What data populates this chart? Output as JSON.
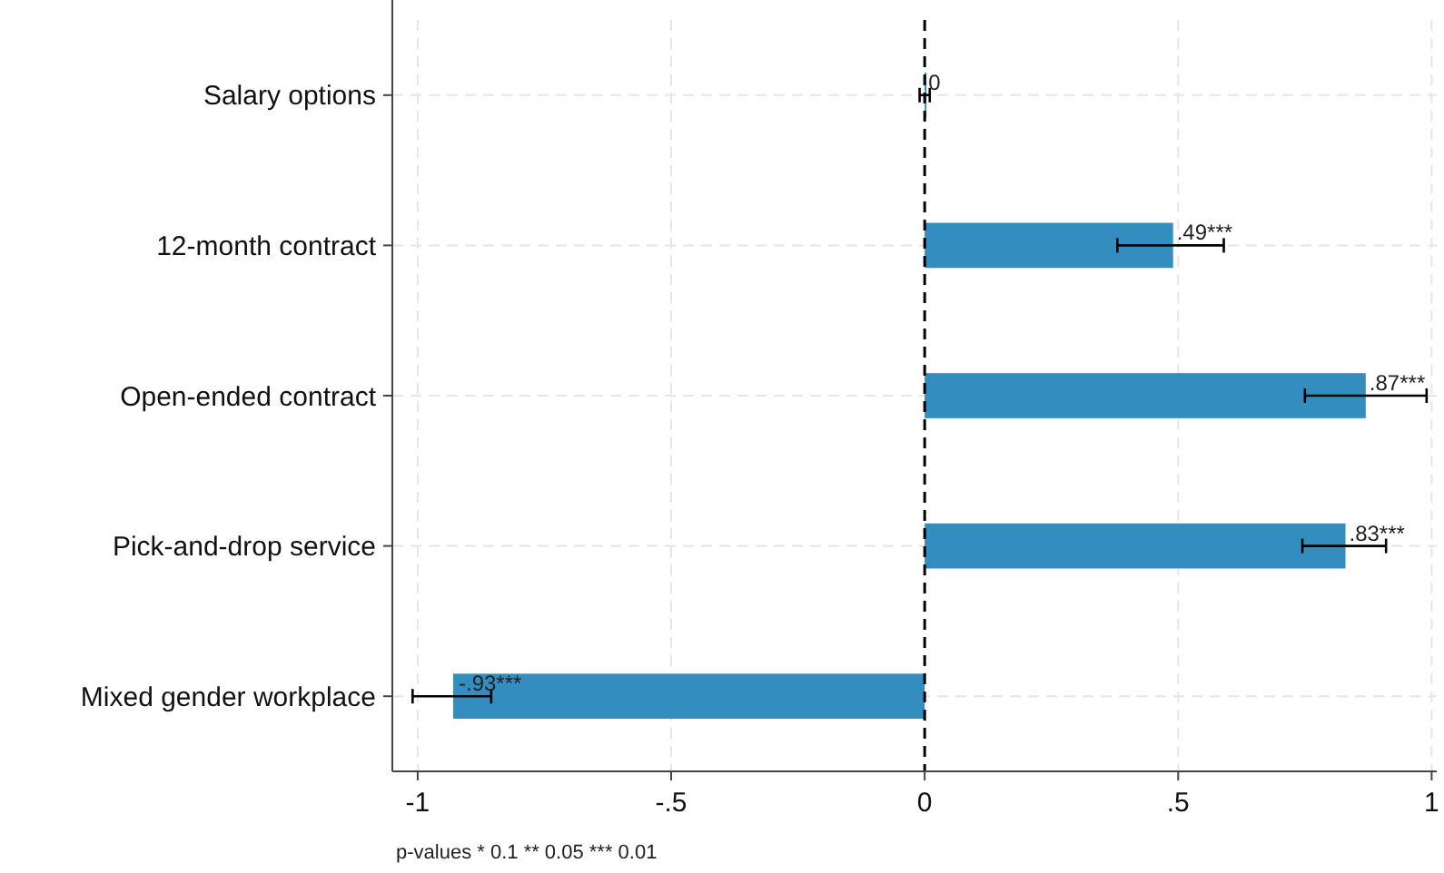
{
  "chart_data": {
    "type": "bar",
    "orientation": "horizontal",
    "categories": [
      "Salary options",
      "12-month contract",
      "Open-ended contract",
      "Pick-and-drop service",
      "Mixed gender workplace"
    ],
    "values": [
      0,
      0.49,
      0.87,
      0.83,
      -0.93
    ],
    "errors": [
      [
        -0.01,
        0.01
      ],
      [
        0.38,
        0.59
      ],
      [
        0.75,
        0.99
      ],
      [
        0.745,
        0.91
      ],
      [
        -1.01,
        -0.855
      ]
    ],
    "value_labels": [
      "0",
      ".49***",
      ".87***",
      ".83***",
      "-.93***"
    ],
    "color": "#338ebf",
    "xlim": [
      -1.05,
      1.01
    ],
    "xticks": [
      {
        "value": -1,
        "label": "-1"
      },
      {
        "value": -0.5,
        "label": "-.5"
      },
      0,
      {
        "value": 0.5,
        "label": ".5"
      },
      1
    ],
    "grid": true,
    "ref_lines": [
      {
        "axis": "x",
        "value": 0,
        "line_style": "dashed",
        "color": "#000000"
      }
    ],
    "annotations": [
      "p-values * 0.1 ** 0.05 *** 0.01"
    ]
  }
}
